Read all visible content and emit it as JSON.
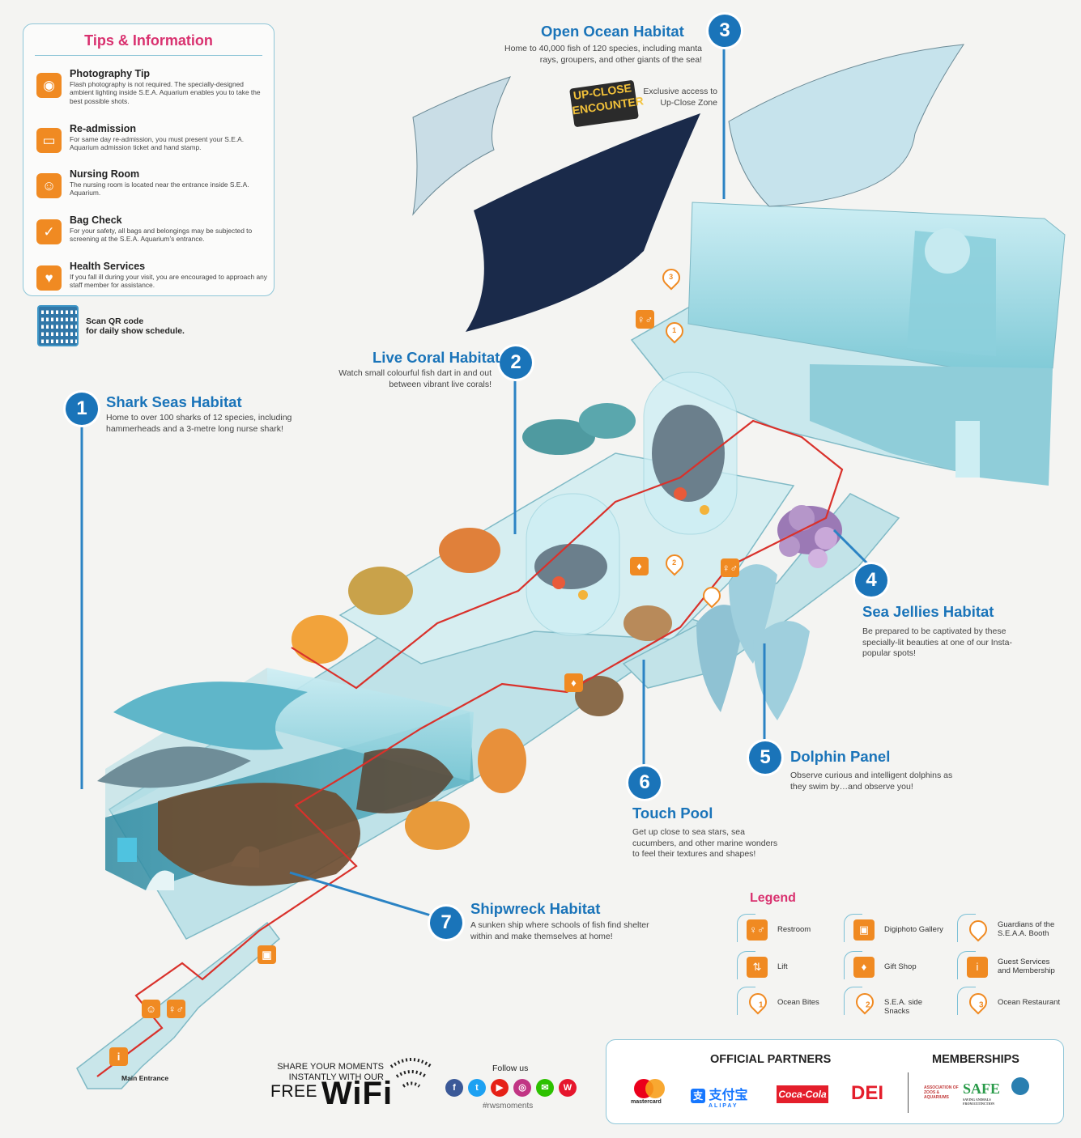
{
  "tips": {
    "title": "Tips & Information",
    "items": [
      {
        "icon": "camera-icon",
        "glyph": "◉",
        "title": "Photography Tip",
        "text": "Flash photography is not required. The specially-designed ambient lighting inside S.E.A. Aquarium enables you to take the best possible shots."
      },
      {
        "icon": "re-admission-sign-icon",
        "glyph": "▭",
        "title": "Re-admission",
        "text": "For same day re-admission, you must present your S.E.A. Aquarium admission ticket and hand stamp."
      },
      {
        "icon": "nursing-room-icon",
        "glyph": "☺",
        "title": "Nursing Room",
        "text": "The nursing room is located near the entrance inside S.E.A. Aquarium."
      },
      {
        "icon": "bag-check-icon",
        "glyph": "✓",
        "title": "Bag Check",
        "text": "For your safety, all bags and belongings may be subjected to screening at the S.E.A. Aquarium’s entrance."
      },
      {
        "icon": "health-services-icon",
        "glyph": "♥",
        "title": "Health Services",
        "text": "If you fall ill during your visit, you are encouraged to approach any staff member for assistance."
      }
    ]
  },
  "qr": {
    "text_line1": "Scan QR code",
    "text_line2": "for daily show schedule."
  },
  "habitats": [
    {
      "num": "1",
      "name": "Shark Seas Habitat",
      "desc": "Home to over 100 sharks of 12 species, including hammerheads and a 3-metre long nurse shark!"
    },
    {
      "num": "2",
      "name": "Live Coral Habitat",
      "desc": "Watch small colourful fish dart in and out between vibrant live corals!"
    },
    {
      "num": "3",
      "name": "Open Ocean Habitat",
      "desc": "Home to 40,000 fish of 120 species, including manta rays, groupers, and other giants of the sea!"
    },
    {
      "num": "4",
      "name": "Sea Jellies Habitat",
      "desc": "Be prepared to be captivated by these specially-lit beauties at one of our Insta-popular spots!"
    },
    {
      "num": "5",
      "name": "Dolphin Panel",
      "desc": "Observe curious and intelligent dolphins as they swim by…and observe you!"
    },
    {
      "num": "6",
      "name": "Touch Pool",
      "desc": "Get up close to sea stars, sea cucumbers, and other marine wonders to feel their textures and shapes!"
    },
    {
      "num": "7",
      "name": "Shipwreck Habitat",
      "desc": "A sunken ship where schools of fish find shelter within and make themselves at home!"
    }
  ],
  "upclose": {
    "badge_line1": "UP-CLOSE",
    "badge_line2": "ENCOUNTER",
    "text": "Exclusive access to Up-Close Zone"
  },
  "map_labels": {
    "main_entrance": "Main Entrance"
  },
  "legend": {
    "title": "Legend",
    "items": [
      {
        "icon": "restroom-icon",
        "glyph": "♀♂",
        "label": "Restroom"
      },
      {
        "icon": "digiphoto-gallery-icon",
        "glyph": "▣",
        "label": "Digiphoto Gallery"
      },
      {
        "icon": "guardians-booth-icon",
        "glyph": "",
        "label": "Guardians of the S.E.A.A. Booth"
      },
      {
        "icon": "lift-icon",
        "glyph": "⇅",
        "label": "Lift"
      },
      {
        "icon": "gift-shop-icon",
        "glyph": "♦",
        "label": "Gift Shop"
      },
      {
        "icon": "guest-services-icon",
        "glyph": "i",
        "label": "Guest Services and Membership"
      },
      {
        "icon": "ocean-bites-icon",
        "glyph": "1",
        "label": "Ocean Bites"
      },
      {
        "icon": "sea-side-snacks-icon",
        "glyph": "2",
        "label": "S.E.A. side Snacks"
      },
      {
        "icon": "ocean-restaurant-icon",
        "glyph": "3",
        "label": "Ocean Restaurant"
      }
    ]
  },
  "partners": {
    "title": "OFFICIAL PARTNERS",
    "memberships_title": "MEMBERSHIPS",
    "logos": [
      "mastercard",
      "支付宝",
      "ALIPAY",
      "Coca-Cola",
      "DEI"
    ],
    "membership_logos": [
      "ASSOCIATION OF ZOOS & AQUARIUMS",
      "SAFE",
      "SAVING ANIMALS FROM EXTINCTION"
    ]
  },
  "wifi": {
    "line1": "SHARE YOUR MOMENTS",
    "line2": "INSTANTLY WITH OUR",
    "free": "FREE",
    "wifi": "WiFi"
  },
  "social": {
    "follow": "Follow us",
    "hashtag": "#rwsmoments"
  },
  "colors": {
    "primary": "#1a74b9",
    "accent": "#f08a22",
    "pink": "#d9316f",
    "floor": "#7fc7d3",
    "wall": "#3d8fa3"
  }
}
